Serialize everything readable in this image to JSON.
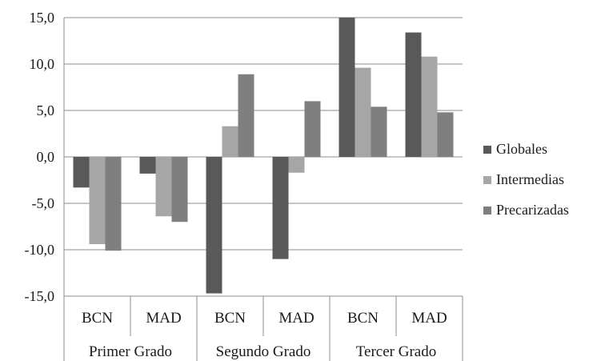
{
  "chart_data": {
    "type": "bar",
    "categories": [
      "BCN",
      "MAD",
      "BCN",
      "MAD",
      "BCN",
      "MAD"
    ],
    "groups": [
      {
        "label": "Primer Grado",
        "span": 2
      },
      {
        "label": "Segundo Grado",
        "span": 2
      },
      {
        "label": "Tercer Grado",
        "span": 2
      }
    ],
    "series": [
      {
        "name": "Globales",
        "color": "#595959",
        "values": [
          -3.3,
          -1.8,
          -14.7,
          -11.0,
          15.0,
          13.4
        ]
      },
      {
        "name": "Intermedias",
        "color": "#a6a6a6",
        "values": [
          -9.4,
          -6.4,
          3.3,
          -1.7,
          9.6,
          10.8
        ]
      },
      {
        "name": "Precarizadas",
        "color": "#7f7f7f",
        "values": [
          -10.1,
          -7.0,
          8.9,
          6.0,
          5.4,
          4.8
        ]
      }
    ],
    "yticks": [
      "15,0",
      "10,0",
      "5,0",
      "0,0",
      "-5,0",
      "-10,0",
      "-15,0"
    ],
    "ylim": [
      -15,
      15
    ],
    "grid": true,
    "legend_position": "right"
  }
}
